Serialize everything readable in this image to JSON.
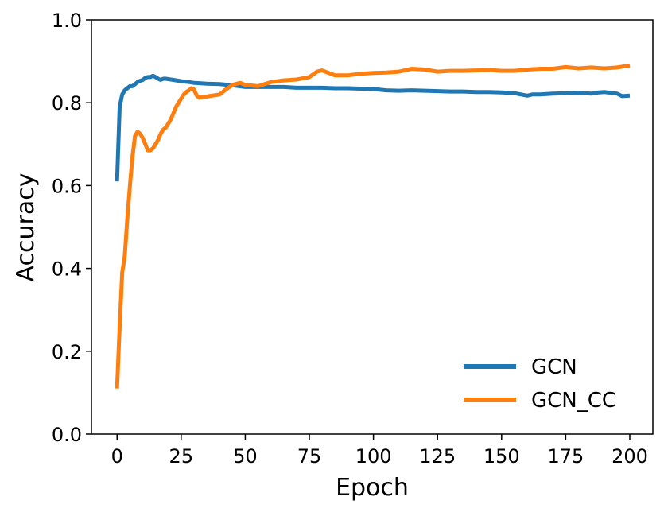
{
  "chart_data": {
    "type": "line",
    "xlabel": "Epoch",
    "ylabel": "Accuracy",
    "xlim": [
      -10,
      209
    ],
    "ylim": [
      0.0,
      1.0
    ],
    "xticks": [
      0,
      25,
      50,
      75,
      100,
      125,
      150,
      175,
      200
    ],
    "yticks": [
      0.0,
      0.2,
      0.4,
      0.6,
      0.8,
      1.0
    ],
    "ytick_labels": [
      "0.0",
      "0.2",
      "0.4",
      "0.6",
      "0.8",
      "1.0"
    ],
    "xtick_labels": [
      "0",
      "25",
      "50",
      "75",
      "100",
      "125",
      "150",
      "175",
      "200"
    ],
    "grid": false,
    "legend_position": "lower-right",
    "series": [
      {
        "name": "GCN",
        "color": "#1f77b4",
        "x": [
          0,
          1,
          2,
          3,
          4,
          5,
          6,
          7,
          8,
          9,
          10,
          11,
          12,
          13,
          14,
          15,
          16,
          17,
          18,
          19,
          20,
          22,
          25,
          28,
          30,
          35,
          40,
          45,
          50,
          55,
          60,
          65,
          70,
          75,
          80,
          85,
          90,
          95,
          100,
          105,
          110,
          115,
          120,
          125,
          130,
          135,
          140,
          145,
          150,
          155,
          160,
          162,
          165,
          170,
          175,
          180,
          185,
          188,
          190,
          195,
          197,
          200
        ],
        "y": [
          0.61,
          0.79,
          0.82,
          0.83,
          0.835,
          0.84,
          0.84,
          0.845,
          0.85,
          0.853,
          0.855,
          0.86,
          0.862,
          0.862,
          0.865,
          0.862,
          0.858,
          0.855,
          0.858,
          0.858,
          0.857,
          0.855,
          0.852,
          0.85,
          0.848,
          0.846,
          0.845,
          0.842,
          0.838,
          0.838,
          0.838,
          0.838,
          0.836,
          0.836,
          0.836,
          0.835,
          0.835,
          0.834,
          0.833,
          0.83,
          0.829,
          0.83,
          0.829,
          0.828,
          0.827,
          0.827,
          0.826,
          0.826,
          0.825,
          0.823,
          0.817,
          0.82,
          0.82,
          0.822,
          0.823,
          0.824,
          0.822,
          0.825,
          0.826,
          0.822,
          0.816,
          0.817
        ]
      },
      {
        "name": "GCN_CC",
        "color": "#ff7f0e",
        "x": [
          0,
          1,
          2,
          3,
          4,
          5,
          6,
          7,
          8,
          9,
          10,
          11,
          12,
          13,
          14,
          15,
          16,
          17,
          18,
          19,
          20,
          21,
          22,
          23,
          24,
          25,
          26,
          27,
          28,
          29,
          30,
          31,
          32,
          35,
          40,
          42,
          45,
          48,
          50,
          55,
          60,
          65,
          70,
          75,
          78,
          80,
          85,
          90,
          95,
          100,
          105,
          110,
          115,
          120,
          125,
          130,
          135,
          140,
          145,
          150,
          155,
          160,
          165,
          170,
          175,
          180,
          185,
          190,
          195,
          200
        ],
        "y": [
          0.11,
          0.26,
          0.39,
          0.43,
          0.52,
          0.6,
          0.67,
          0.72,
          0.73,
          0.725,
          0.715,
          0.7,
          0.685,
          0.685,
          0.69,
          0.7,
          0.71,
          0.725,
          0.735,
          0.74,
          0.75,
          0.76,
          0.775,
          0.79,
          0.8,
          0.81,
          0.82,
          0.826,
          0.83,
          0.835,
          0.832,
          0.818,
          0.812,
          0.815,
          0.82,
          0.83,
          0.843,
          0.848,
          0.843,
          0.84,
          0.85,
          0.854,
          0.856,
          0.862,
          0.875,
          0.878,
          0.866,
          0.866,
          0.87,
          0.872,
          0.873,
          0.875,
          0.882,
          0.88,
          0.875,
          0.877,
          0.877,
          0.878,
          0.879,
          0.877,
          0.877,
          0.88,
          0.882,
          0.882,
          0.886,
          0.883,
          0.885,
          0.883,
          0.885,
          0.89
        ]
      }
    ]
  }
}
